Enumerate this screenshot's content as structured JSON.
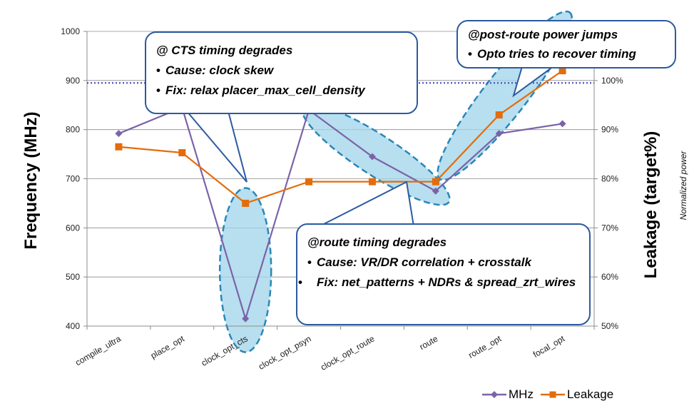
{
  "chart_data": {
    "type": "line",
    "categories": [
      "compile_ultra",
      "place_opt",
      "clock_opt_cts",
      "clock_opt_psyn",
      "clock_opt_route",
      "route",
      "route_opt",
      "focal_opt"
    ],
    "series": [
      {
        "name": "MHz",
        "axis": "left",
        "color": "#7b63a8",
        "marker": "diamond",
        "values": [
          792,
          845,
          415,
          840,
          745,
          675,
          792,
          812
        ]
      },
      {
        "name": "Leakage",
        "axis": "right",
        "color": "#e46c0a",
        "marker": "square",
        "values": [
          0.865,
          0.853,
          0.75,
          0.794,
          0.794,
          0.794,
          0.93,
          1.02
        ]
      }
    ],
    "y_left": {
      "label": "Frequency (MHz)",
      "min": 400,
      "max": 1000,
      "ticks": [
        "400",
        "500",
        "600",
        "700",
        "800",
        "900",
        "1000"
      ]
    },
    "y_right": {
      "label": "Leakage (target%)",
      "min": 0.5,
      "max": 1.1,
      "ticks": [
        "50%",
        "60%",
        "70%",
        "80%",
        "90%",
        "100%"
      ]
    },
    "right_note": "Normalized power",
    "target_line": {
      "axis": "left",
      "value": 895,
      "color": "#5050c0"
    },
    "grid": true,
    "legend": "bottom-right",
    "highlight_color": "#9fd4ea",
    "callout_border": "#2c5aa0"
  },
  "callouts": {
    "cts": {
      "head": "@ CTS timing degrades",
      "items": [
        "Cause: clock skew",
        "Fix: relax placer_max_cell_density"
      ]
    },
    "postroute": {
      "head": "@post-route power jumps",
      "items": [
        "Opto tries to recover timing"
      ]
    },
    "route": {
      "head": "@route timing degrades",
      "items": [
        "Cause:  VR/DR correlation + crosstalk",
        "Fix:  net_patterns + NDRs & spread_zrt_wires"
      ]
    }
  },
  "legend": {
    "mhz": "MHz",
    "leakage": "Leakage"
  }
}
